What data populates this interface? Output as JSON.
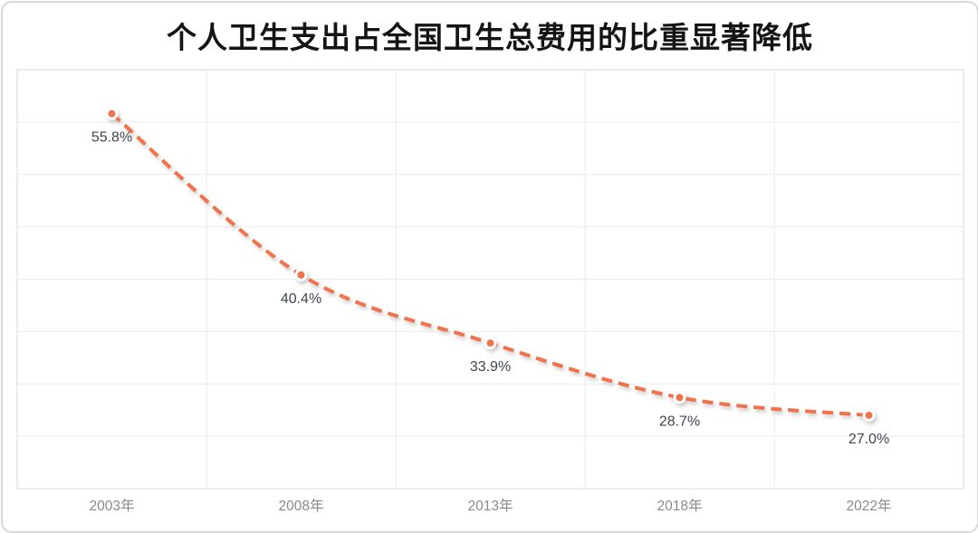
{
  "chart_data": {
    "type": "line",
    "title": "个人卫生支出占全国卫生总费用的比重显著降低",
    "categories": [
      "2003年",
      "2008年",
      "2013年",
      "2018年",
      "2022年"
    ],
    "values": [
      55.8,
      40.4,
      33.9,
      28.7,
      27.0
    ],
    "data_labels": [
      "55.8%",
      "40.4%",
      "33.9%",
      "28.7%",
      "27.0%"
    ],
    "ylim": [
      20,
      60
    ],
    "y_gridline_step": 5,
    "grid": true,
    "legend": "none",
    "line_style": "dashed",
    "smooth": true,
    "marker": "circle",
    "colors": {
      "line": "#F0734C",
      "marker_fill": "#F0734C",
      "marker_ring": "#FFFFFF",
      "data_label": "#3F4650",
      "axis_label": "#8A8A8A",
      "gridline": "#EBEBEB",
      "plot_border": "#E2E2E2",
      "card_border": "#D9D9D9",
      "title": "#141414",
      "background": "#FFFFFF"
    }
  }
}
